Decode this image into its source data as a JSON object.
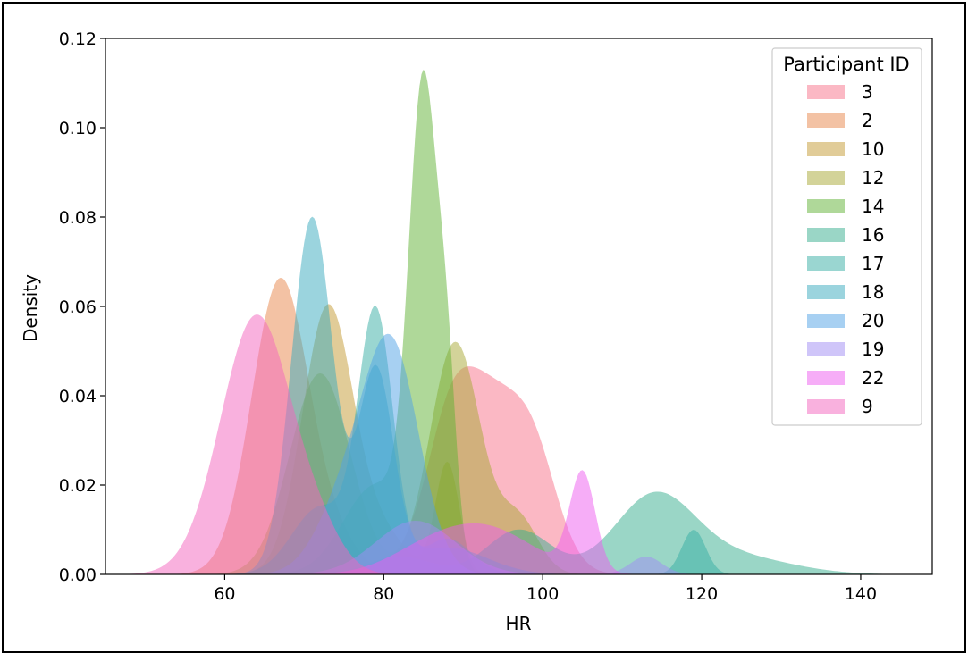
{
  "chart_data": {
    "type": "area",
    "chart_kind": "kernel density estimate",
    "xlabel": "HR",
    "ylabel": "Density",
    "xlim": [
      45,
      149
    ],
    "ylim": [
      0,
      0.12
    ],
    "xticks": [
      "60",
      "80",
      "100",
      "120",
      "140"
    ],
    "yticks": [
      "0.00",
      "0.02",
      "0.04",
      "0.06",
      "0.08",
      "0.10",
      "0.12"
    ],
    "grid": false,
    "legend": {
      "title": "Participant ID",
      "placement": "top-right"
    },
    "series": [
      {
        "name": "3",
        "color": "#f77189",
        "components": [
          [
            92,
            5,
            0.042
          ],
          [
            99,
            3,
            0.018
          ],
          [
            88,
            2.5,
            0.01
          ]
        ]
      },
      {
        "name": "2",
        "color": "#e8854a",
        "components": [
          [
            67,
            3.6,
            0.066
          ],
          [
            74,
            3,
            0.006
          ]
        ]
      },
      {
        "name": "10",
        "color": "#c39a32",
        "components": [
          [
            73,
            3.2,
            0.06
          ],
          [
            88,
            1.5,
            0.025
          ],
          [
            80,
            3,
            0.008
          ]
        ]
      },
      {
        "name": "12",
        "color": "#a7a833",
        "components": [
          [
            72,
            3.8,
            0.045
          ],
          [
            89,
            3.2,
            0.052
          ],
          [
            97,
            2.5,
            0.012
          ]
        ]
      },
      {
        "name": "14",
        "color": "#5fb233",
        "components": [
          [
            85,
            1.8,
            0.105
          ],
          [
            88,
            1.2,
            0.035
          ],
          [
            79,
            4,
            0.02
          ]
        ]
      },
      {
        "name": "16",
        "color": "#35ae8e",
        "components": [
          [
            114,
            5,
            0.017
          ],
          [
            124,
            7,
            0.004
          ],
          [
            97,
            4,
            0.01
          ],
          [
            82,
            4,
            0.004
          ]
        ]
      },
      {
        "name": "17",
        "color": "#36ada4",
        "components": [
          [
            79,
            2.2,
            0.058
          ],
          [
            72,
            3.5,
            0.015
          ],
          [
            119,
            1.5,
            0.01
          ],
          [
            88,
            3,
            0.008
          ]
        ]
      },
      {
        "name": "18",
        "color": "#38aabd",
        "components": [
          [
            71,
            2.6,
            0.08
          ],
          [
            79,
            2.2,
            0.045
          ],
          [
            88,
            5,
            0.006
          ]
        ]
      },
      {
        "name": "20",
        "color": "#50a2e6",
        "components": [
          [
            81,
            3.5,
            0.05
          ],
          [
            75,
            3.5,
            0.015
          ]
        ]
      },
      {
        "name": "19",
        "color": "#a08bf4",
        "components": [
          [
            84,
            5,
            0.012
          ],
          [
            113,
            2,
            0.004
          ]
        ]
      },
      {
        "name": "22",
        "color": "#ee5bf0",
        "components": [
          [
            105,
            1.6,
            0.022
          ],
          [
            93,
            6,
            0.01
          ],
          [
            85,
            5,
            0.004
          ]
        ]
      },
      {
        "name": "9",
        "color": "#f463be",
        "components": [
          [
            64,
            4.5,
            0.058
          ],
          [
            72,
            3,
            0.006
          ]
        ]
      }
    ]
  }
}
